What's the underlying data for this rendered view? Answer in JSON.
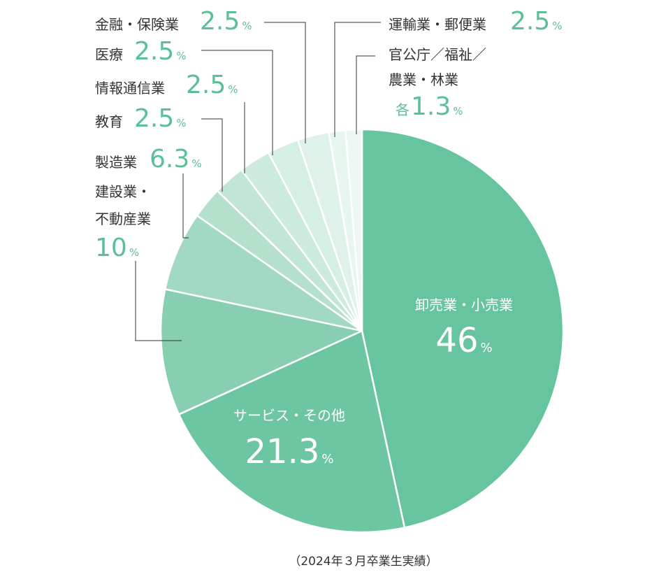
{
  "chart_data": {
    "type": "pie",
    "unit": "%",
    "slices": [
      {
        "label": "卸売業・小売業",
        "value": 46,
        "display": "46",
        "color": "#66c49f"
      },
      {
        "label": "サービス・その他",
        "value": 21.3,
        "display": "21.3",
        "color": "#6dc6a2"
      },
      {
        "label": "建設業・不動産業",
        "value": 10,
        "display": "10",
        "color": "#88cfb2"
      },
      {
        "label": "製造業",
        "value": 6.3,
        "display": "6.3",
        "color": "#a2d9c2"
      },
      {
        "label": "教育",
        "value": 2.5,
        "display": "2.5",
        "color": "#b4e0cc"
      },
      {
        "label": "情報通信業",
        "value": 2.5,
        "display": "2.5",
        "color": "#c2e6d6"
      },
      {
        "label": "医療",
        "value": 2.5,
        "display": "2.5",
        "color": "#cdebdd"
      },
      {
        "label": "金融・保険業",
        "value": 2.5,
        "display": "2.5",
        "color": "#d6efe3"
      },
      {
        "label": "運輸業・郵便業",
        "value": 2.5,
        "display": "2.5",
        "color": "#dff2e9"
      },
      {
        "label": "官公庁／福祉／農業・林業",
        "value": 1.3,
        "display": "1.3",
        "color": "#e6f5ee"
      },
      {
        "label": "官公庁／福祉／農業・林業",
        "value": 1.3,
        "display": "1.3",
        "color": "#ecf7f2"
      }
    ],
    "note": "（2024年３月卒業生実績）",
    "text": {
      "wholesale_label": "卸売業・小売業",
      "wholesale_value": "46",
      "service_label": "サービス・その他",
      "service_value": "21.3",
      "construction_label_1": "建設業・",
      "construction_label_2": "不動産業",
      "construction_value": "10",
      "manufacturing_label": "製造業",
      "manufacturing_value": "6.3",
      "education_label": "教育",
      "education_value": "2.5",
      "it_label": "情報通信業",
      "it_value": "2.5",
      "medical_label": "医療",
      "medical_value": "2.5",
      "finance_label": "金融・保険業",
      "finance_value": "2.5",
      "transport_label": "運輸業・郵便業",
      "transport_value": "2.5",
      "gov_label_1": "官公庁／福祉／",
      "gov_label_2": "農業・林業",
      "gov_prefix": "各",
      "gov_value": "1.3",
      "percent_sign": "%"
    }
  }
}
